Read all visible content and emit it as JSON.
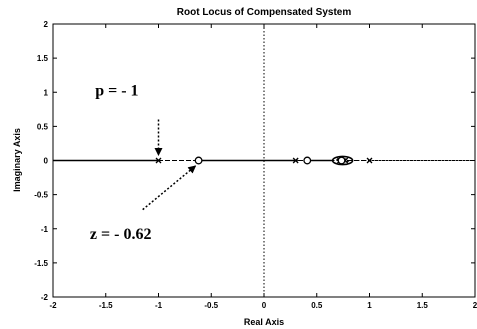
{
  "chart_data": {
    "type": "line",
    "title": "Root Locus of Compensated System",
    "xlabel": "Real Axis",
    "ylabel": "Imaginary Axis",
    "xlim": [
      -2,
      2
    ],
    "ylim": [
      -2,
      2
    ],
    "xticks": [
      -2,
      -1.5,
      -1,
      -0.5,
      0,
      0.5,
      1,
      1.5,
      2
    ],
    "yticks": [
      -2,
      -1.5,
      -1,
      -0.5,
      0,
      0.5,
      1,
      1.5,
      2
    ],
    "xtick_labels": [
      "-2",
      "-1.5",
      "-1",
      "-0.5",
      "0",
      "0.5",
      "1",
      "1.5",
      "2"
    ],
    "ytick_labels": [
      "-2",
      "-1.5",
      "-1",
      "-0.5",
      "0",
      "0.5",
      "1",
      "1.5",
      "2"
    ],
    "grid": false,
    "reference_lines": {
      "x": 0,
      "y": 0,
      "style": "dotted"
    },
    "locus_segments": [
      {
        "x": [
          -2,
          -1
        ],
        "style": "solid"
      },
      {
        "x": [
          -1,
          -0.62
        ],
        "style": "dashed"
      },
      {
        "x": [
          -0.62,
          0.32
        ],
        "style": "solid"
      },
      {
        "x": [
          0.32,
          0.41
        ],
        "style": "dashed"
      },
      {
        "x": [
          0.41,
          0.66
        ],
        "style": "solid"
      },
      {
        "x": [
          0.8,
          1.0
        ],
        "style": "dashed"
      },
      {
        "x": [
          1.0,
          2.0
        ],
        "style": "dotted"
      }
    ],
    "loops": [
      {
        "center": [
          0.745,
          0
        ],
        "rx": 0.095,
        "ry": 0.06,
        "style": "solid"
      },
      {
        "center": [
          0.745,
          0
        ],
        "rx": 0.06,
        "ry": 0.025,
        "style": "dashed"
      }
    ],
    "poles": [
      {
        "x": -1,
        "y": 0
      },
      {
        "x": 0.3,
        "y": 0
      },
      {
        "x": 0.72,
        "y": 0
      },
      {
        "x": 0.77,
        "y": 0
      },
      {
        "x": 1.0,
        "y": 0
      }
    ],
    "zeros": [
      {
        "x": -0.62,
        "y": 0
      },
      {
        "x": 0.41,
        "y": 0
      },
      {
        "x": 0.735,
        "y": 0
      }
    ],
    "annotations": [
      {
        "text": "p = - 1",
        "text_at": [
          -1.6,
          0.95
        ],
        "arrow_from": [
          -1.0,
          0.6
        ],
        "arrow_to": [
          -1.0,
          0.08
        ]
      },
      {
        "text": "z = - 0.62",
        "text_at": [
          -1.65,
          -1.15
        ],
        "arrow_from": [
          -1.15,
          -0.72
        ],
        "arrow_to": [
          -0.65,
          -0.08
        ]
      }
    ]
  }
}
